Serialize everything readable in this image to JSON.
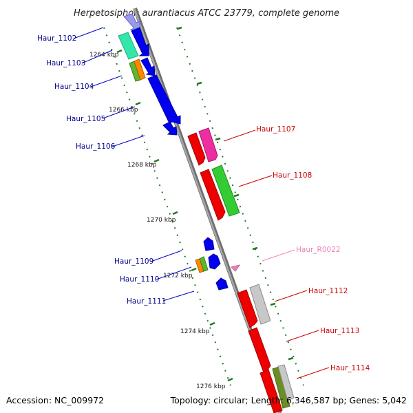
{
  "title": "Herpetosiphon aurantiacus ATCC 23779, complete genome",
  "footer": {
    "accession": "Accession: NC_009972",
    "topology": "Topology: circular; Length: 6,346,587 bp; Genes: 5,042"
  },
  "ticks": [
    "1264 kbp",
    "1266 kbp",
    "1268 kbp",
    "1270 kbp",
    "1272 kbp",
    "1274 kbp",
    "1276 kbp"
  ],
  "colors": {
    "backbone": "#8c8c8c",
    "tick": "#1f7a1f",
    "left_label": "#00008b",
    "right_label": "#cc0000",
    "rna_label": "#ee82b4"
  },
  "labels_left": [
    "Haur_1102",
    "Haur_1103",
    "Haur_1104",
    "Haur_1105",
    "Haur_1106",
    "Haur_1109",
    "Haur_1110",
    "Haur_1111"
  ],
  "labels_right": [
    "Haur_1107",
    "Haur_1108",
    "Haur_R0022",
    "Haur_1112",
    "Haur_1113",
    "Haur_1114"
  ]
}
